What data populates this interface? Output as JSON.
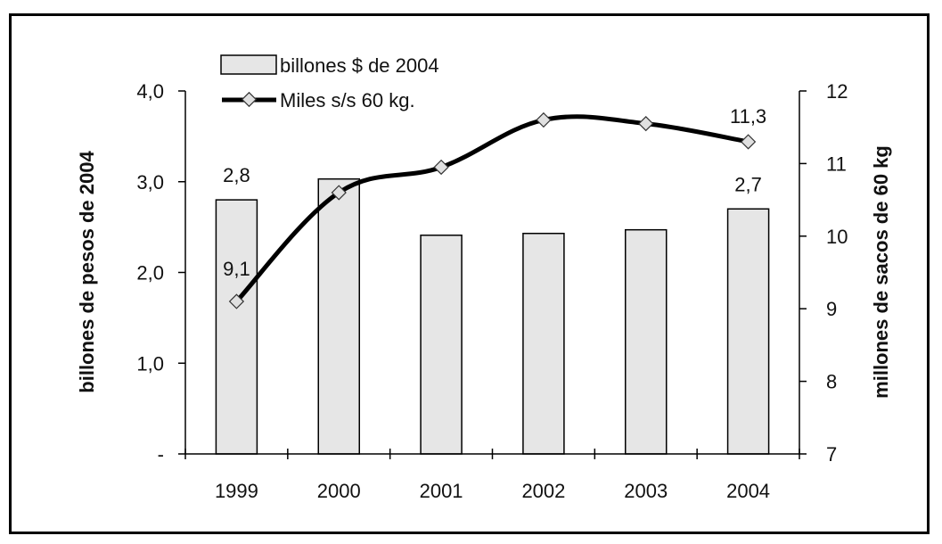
{
  "chart_data": {
    "type": "bar",
    "categories": [
      "1999",
      "2000",
      "2001",
      "2002",
      "2003",
      "2004"
    ],
    "series": [
      {
        "name": "billones $ de 2004",
        "kind": "bar",
        "axis": "left",
        "values": [
          2.8,
          3.03,
          2.41,
          2.43,
          2.47,
          2.7
        ],
        "data_labels": [
          "2,8",
          "",
          "",
          "",
          "",
          "2,7"
        ]
      },
      {
        "name": "Miles s/s 60 kg.",
        "kind": "line",
        "axis": "right",
        "values": [
          9.1,
          10.6,
          10.95,
          11.6,
          11.55,
          11.3
        ],
        "data_labels": [
          "9,1",
          "",
          "",
          "",
          "",
          "11,3"
        ]
      }
    ],
    "y_left": {
      "label": "billones de pesos de 2004",
      "ylim": [
        0,
        4
      ],
      "ticks": [
        0,
        1,
        2,
        3,
        4
      ],
      "tick_labels": [
        "-",
        "1,0",
        "2,0",
        "3,0",
        "4,0"
      ]
    },
    "y_right": {
      "label": "millones de sacos de 60 kg",
      "ylim": [
        7,
        12
      ],
      "ticks": [
        7,
        8,
        9,
        10,
        11,
        12
      ],
      "tick_labels": [
        "7",
        "8",
        "9",
        "10",
        "11",
        "12"
      ]
    },
    "grid": false,
    "legend_position": "top-left",
    "colors": {
      "bar_fill": "#e6e6e6",
      "bar_stroke": "#000000",
      "line": "#000000",
      "marker_fill": "#e0e0e0",
      "marker_stroke": "#333333"
    }
  }
}
